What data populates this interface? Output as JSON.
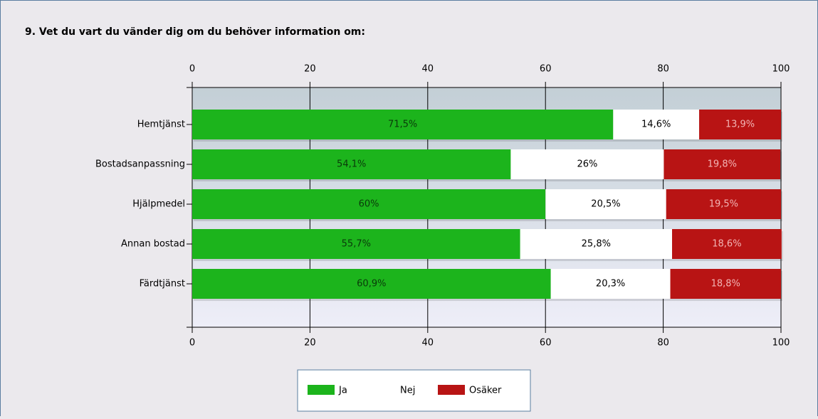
{
  "chart_data": {
    "type": "stacked_barh",
    "title": "9. Vet du vart du vänder dig om du behöver information om:",
    "categories": [
      "Hemtjänst",
      "Bostadsanpassning",
      "Hjälpmedel",
      "Annan bostad",
      "Färdtjänst"
    ],
    "series": [
      {
        "name": "Ja",
        "color": "#1cb41c",
        "values": [
          71.5,
          54.1,
          60,
          55.7,
          60.9
        ],
        "value_labels": [
          "71,5%",
          "54,1%",
          "60%",
          "55,7%",
          "60,9%"
        ]
      },
      {
        "name": "Nej",
        "color": "#ffffff",
        "values": [
          14.6,
          26,
          20.5,
          25.8,
          20.3
        ],
        "value_labels": [
          "14,6%",
          "26%",
          "20,5%",
          "25,8%",
          "20,3%"
        ]
      },
      {
        "name": "Osäker",
        "color": "#b81414",
        "values": [
          13.9,
          19.8,
          19.5,
          18.6,
          18.8
        ],
        "value_labels": [
          "13,9%",
          "19,8%",
          "19,5%",
          "18,6%",
          "18,8%"
        ]
      }
    ],
    "xlim": [
      0,
      100
    ],
    "xticks": [
      0,
      20,
      40,
      60,
      80,
      100
    ],
    "grid": true,
    "legend": "bottom"
  }
}
